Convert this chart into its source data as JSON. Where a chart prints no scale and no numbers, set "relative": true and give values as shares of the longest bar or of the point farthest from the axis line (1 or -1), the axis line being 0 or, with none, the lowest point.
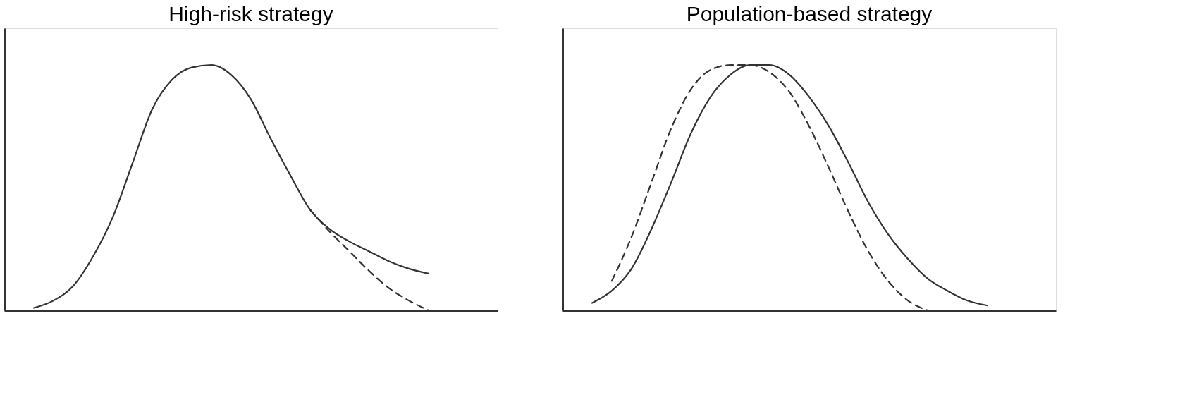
{
  "chart_data": [
    {
      "type": "line",
      "title": "High-risk strategy",
      "relative": true,
      "categories": [
        null,
        null,
        null,
        null,
        null,
        null,
        null,
        null,
        null,
        null,
        null,
        null,
        null,
        null,
        null,
        null,
        null,
        null,
        null,
        null,
        null
      ],
      "series": [
        {
          "color": "#333333",
          "line_style": "solid",
          "values": [
            0.01,
            0.04,
            0.1,
            0.22,
            0.38,
            0.6,
            0.82,
            0.94,
            0.99,
            1.0,
            0.96,
            0.86,
            0.7,
            0.55,
            0.41,
            0.33,
            0.28,
            0.24,
            0.2,
            0.17,
            0.15
          ]
        },
        {
          "color": "#333333",
          "line_style": "dashed",
          "values": [
            null,
            null,
            null,
            null,
            null,
            null,
            null,
            null,
            null,
            null,
            null,
            null,
            null,
            null,
            0.41,
            0.32,
            0.24,
            0.16,
            0.09,
            0.04,
            0.0
          ]
        }
      ]
    },
    {
      "type": "line",
      "title": "Population-based strategy",
      "relative": true,
      "categories": [
        null,
        null,
        null,
        null,
        null,
        null,
        null,
        null,
        null,
        null,
        null,
        null,
        null,
        null,
        null,
        null,
        null,
        null,
        null,
        null,
        null
      ],
      "series": [
        {
          "color": "#333333",
          "line_style": "solid",
          "values": [
            0.03,
            0.08,
            0.17,
            0.33,
            0.52,
            0.72,
            0.87,
            0.96,
            1.0,
            1.0,
            0.96,
            0.87,
            0.75,
            0.6,
            0.44,
            0.31,
            0.21,
            0.13,
            0.08,
            0.04,
            0.02
          ]
        },
        {
          "color": "#333333",
          "line_style": "dashed",
          "values": [
            null,
            0.12,
            0.3,
            0.52,
            0.74,
            0.9,
            0.98,
            1.0,
            1.0,
            0.97,
            0.89,
            0.75,
            0.58,
            0.4,
            0.24,
            0.12,
            0.04,
            0.0,
            null,
            null,
            null
          ]
        }
      ]
    }
  ]
}
